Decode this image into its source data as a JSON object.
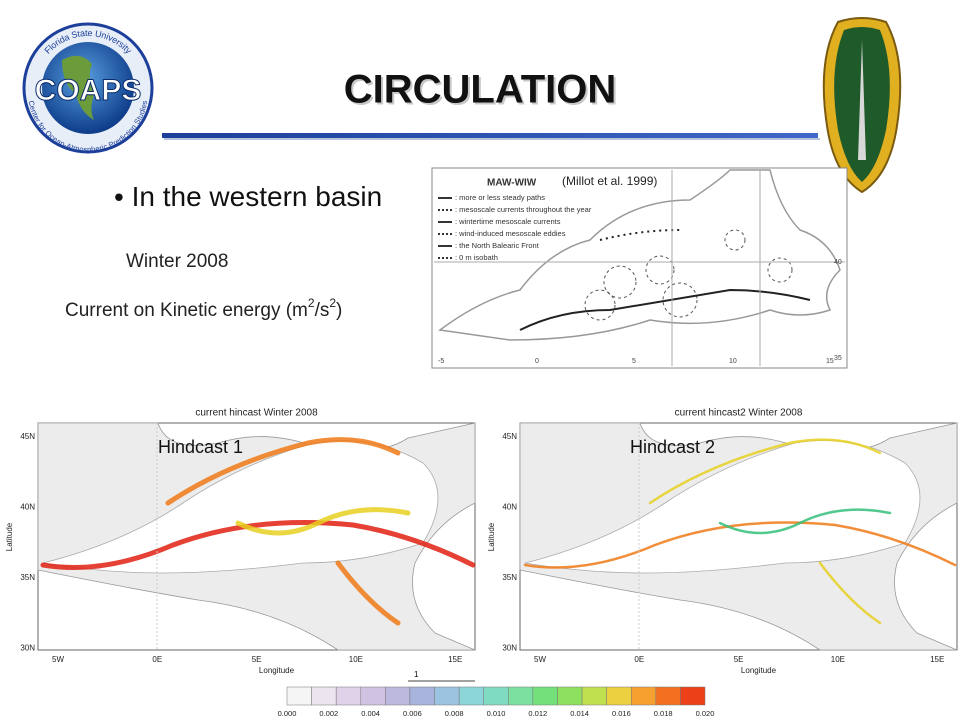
{
  "header": {
    "title": "CIRCULATION"
  },
  "logo": {
    "name": "COAPS",
    "ring_top": "Florida State University",
    "ring_bottom": "Center for Ocean-Atmospheric Prediction Studies"
  },
  "bullet": "In the western basin",
  "season": "Winter 2008",
  "caption": {
    "text": "Current on Kinetic energy (m",
    "sup1": "2",
    "mid": "/s",
    "sup2": "2",
    "end": ")"
  },
  "inset": {
    "citation": "(Millot et al. 1999)",
    "title": "MAW-WIW",
    "legend": [
      ": more or less steady paths",
      ": mesoscale currents throughout the year",
      ": wintertime mesoscale currents",
      ": wind-induced mesoscale eddies",
      ": the North Balearic Front",
      ": 0 m isobath"
    ],
    "xticks": [
      "-5",
      "0",
      "5",
      "10",
      "15"
    ],
    "yticks": [
      "40",
      "35"
    ]
  },
  "panels": [
    {
      "title": "current hincast Winter 2008",
      "label": "Hindcast 1"
    },
    {
      "title": "current hincast2 Winter 2008",
      "label": "Hindcast 2"
    }
  ],
  "axes": {
    "ylabel": "Latitude",
    "xlabel": "Longitude",
    "yticks": [
      "45N",
      "40N",
      "35N",
      "30N"
    ],
    "xticks": [
      "5W",
      "0E",
      "5E",
      "10E",
      "15E"
    ]
  },
  "scale_arrow": "1",
  "colorbar": {
    "labels": [
      "0.000",
      "0.002",
      "0.004",
      "0.006",
      "0.008",
      "0.010",
      "0.012",
      "0.014",
      "0.016",
      "0.018",
      "0.020"
    ]
  }
}
